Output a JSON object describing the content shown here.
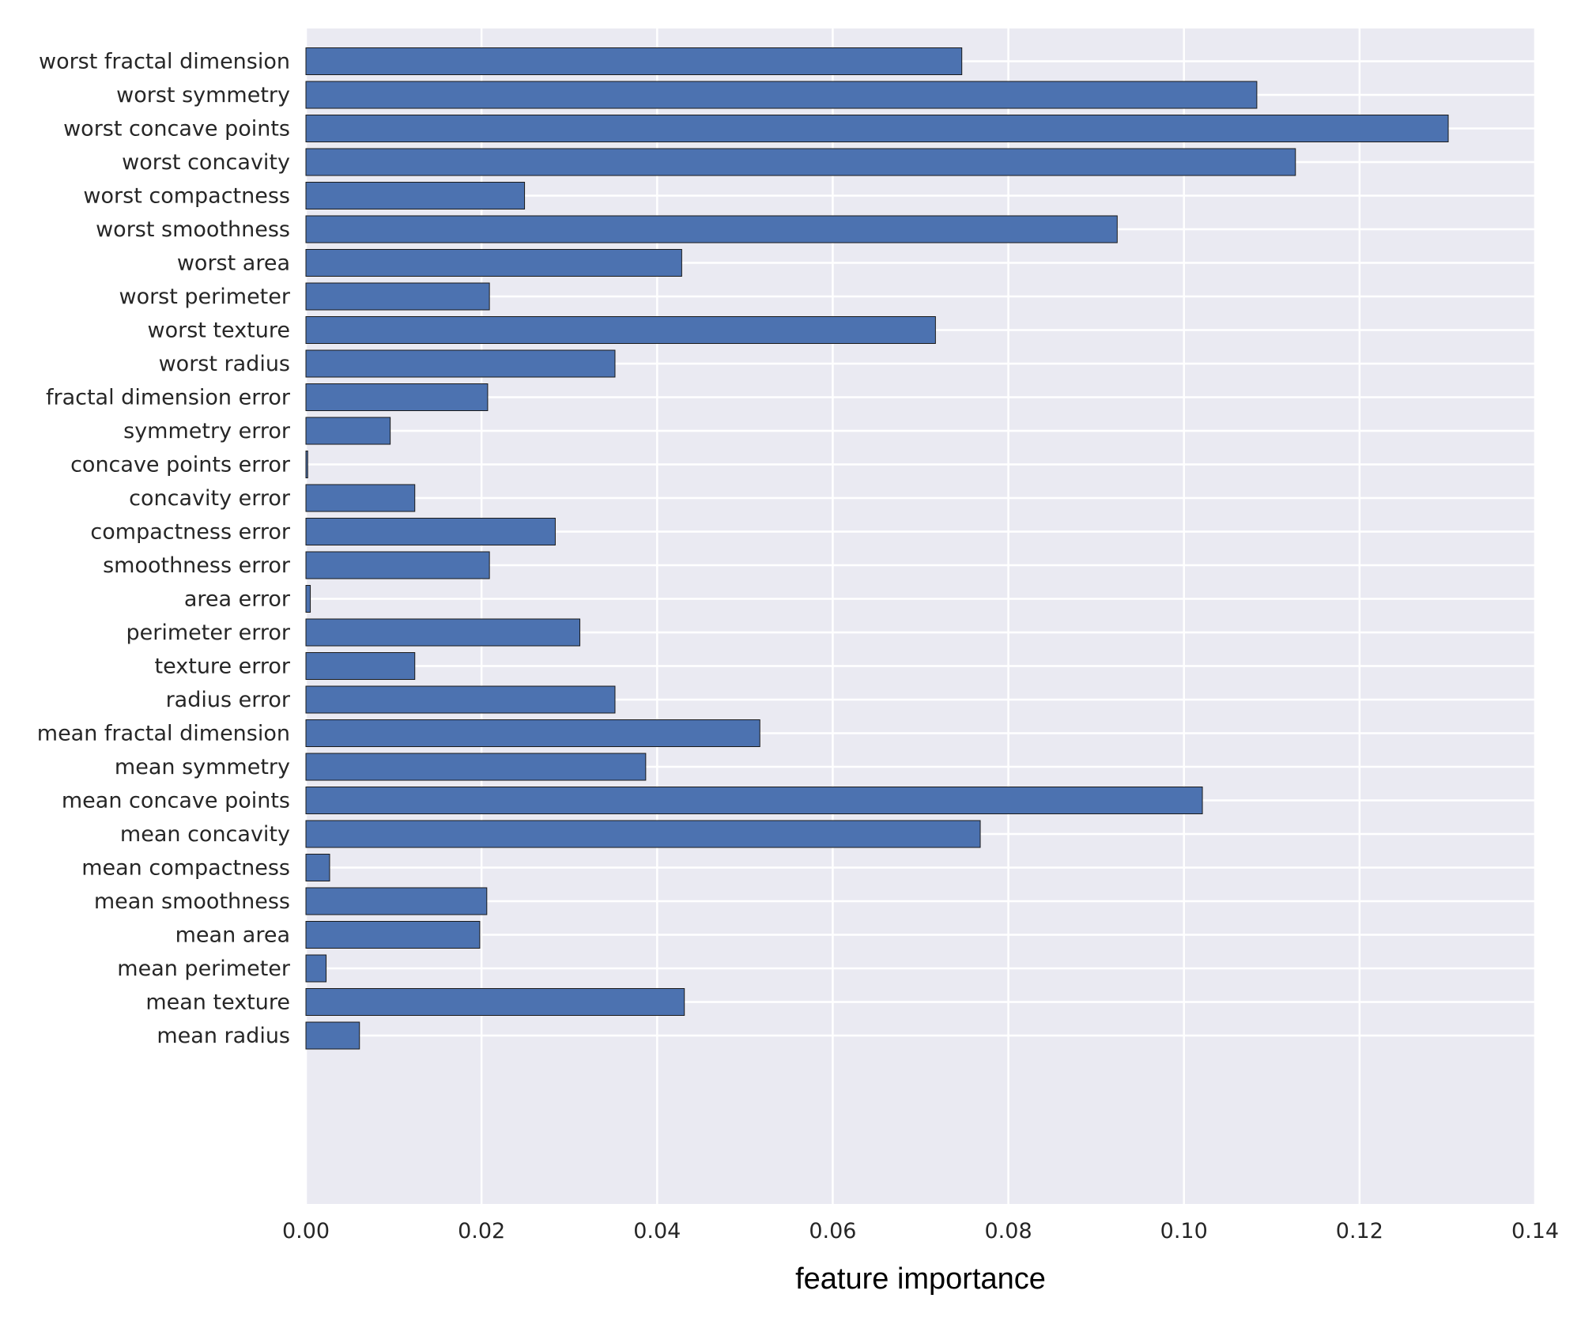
{
  "chart_data": {
    "type": "bar",
    "orientation": "horizontal",
    "title": "",
    "xlabel": "feature importance",
    "ylabel": "",
    "xlim": [
      0.0,
      0.14
    ],
    "xticks": [
      "0.00",
      "0.02",
      "0.04",
      "0.06",
      "0.08",
      "0.10",
      "0.12",
      "0.14"
    ],
    "grid": true,
    "bar_color": "#4c72b0",
    "background_color": "#eaeaf2",
    "categories": [
      "mean radius",
      "mean texture",
      "mean perimeter",
      "mean area",
      "mean smoothness",
      "mean compactness",
      "mean concavity",
      "mean concave points",
      "mean symmetry",
      "mean fractal dimension",
      "radius error",
      "texture error",
      "perimeter error",
      "area error",
      "smoothness error",
      "compactness error",
      "concavity error",
      "concave points error",
      "symmetry error",
      "fractal dimension error",
      "worst radius",
      "worst texture",
      "worst perimeter",
      "worst area",
      "worst smoothness",
      "worst compactness",
      "worst concavity",
      "worst concave points",
      "worst symmetry",
      "worst fractal dimension"
    ],
    "values": [
      0.0061,
      0.0431,
      0.0023,
      0.0198,
      0.0206,
      0.0027,
      0.0768,
      0.1021,
      0.0387,
      0.0517,
      0.0352,
      0.0124,
      0.0312,
      0.0005,
      0.0209,
      0.0284,
      0.0124,
      0.0002,
      0.0096,
      0.0207,
      0.0352,
      0.0717,
      0.0209,
      0.0428,
      0.0924,
      0.0249,
      0.1127,
      0.1301,
      0.1083,
      0.0747
    ]
  }
}
